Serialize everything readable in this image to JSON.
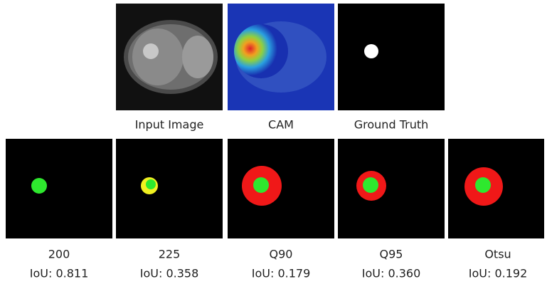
{
  "top_row": [
    {
      "caption": "Input Image"
    },
    {
      "caption": "CAM"
    },
    {
      "caption": "Ground Truth"
    }
  ],
  "bottom_row": [
    {
      "label": "200",
      "iou": "IoU: 0.811"
    },
    {
      "label": "225",
      "iou": "IoU: 0.358"
    },
    {
      "label": "Q90",
      "iou": "IoU: 0.179"
    },
    {
      "label": "Q95",
      "iou": "IoU: 0.360"
    },
    {
      "label": "Otsu",
      "iou": "IoU: 0.192"
    }
  ]
}
